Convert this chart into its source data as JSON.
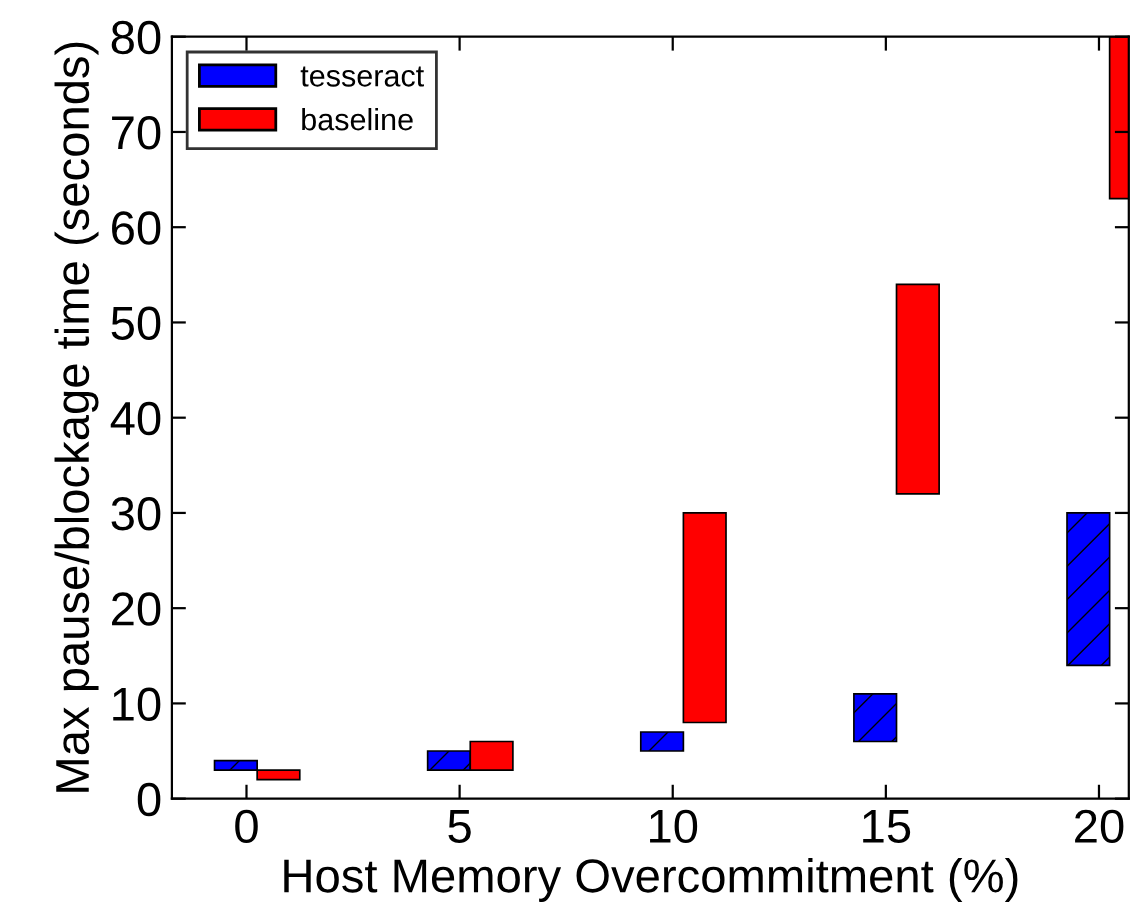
{
  "chart_data": {
    "type": "bar",
    "xlabel": "Host Memory Overcommitment (%)",
    "ylabel": "Max pause/blockage time (seconds)",
    "x": [
      0,
      5,
      10,
      15,
      20
    ],
    "series": [
      {
        "name": "tesseract",
        "color": "#0000ff",
        "base": [
          3,
          3,
          5,
          6,
          14
        ],
        "values": [
          1,
          2,
          2,
          5,
          16
        ]
      },
      {
        "name": "baseline",
        "color": "#ff0000",
        "base": [
          2,
          3,
          8,
          32,
          63
        ],
        "values": [
          1,
          3,
          22,
          22,
          17
        ]
      }
    ],
    "xlim": [
      -1.75,
      20.7
    ],
    "ylim": [
      0,
      80
    ],
    "xticks": [
      0,
      5,
      10,
      15,
      20
    ],
    "yticks": [
      0,
      10,
      20,
      30,
      40,
      50,
      60,
      70,
      80
    ],
    "grid": false,
    "legend": "top left"
  }
}
